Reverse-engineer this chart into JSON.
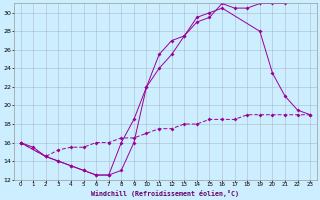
{
  "bg_color": "#cceeff",
  "line_color": "#990099",
  "grid_color": "#aabbcc",
  "xlabel": "Windchill (Refroidissement éolien,°C)",
  "xlim": [
    -0.5,
    23.5
  ],
  "ylim": [
    12,
    31
  ],
  "xticks": [
    0,
    1,
    2,
    3,
    4,
    5,
    6,
    7,
    8,
    9,
    10,
    11,
    12,
    13,
    14,
    15,
    16,
    17,
    18,
    19,
    20,
    21,
    22,
    23
  ],
  "yticks": [
    12,
    14,
    16,
    18,
    20,
    22,
    24,
    26,
    28,
    30
  ],
  "line1_x": [
    0,
    1,
    2,
    3,
    4,
    5,
    6,
    7,
    8,
    9,
    10,
    11,
    12,
    13,
    14,
    15,
    16,
    17,
    18,
    19,
    20,
    21
  ],
  "line1_y": [
    16,
    15.5,
    14.5,
    14.0,
    13.5,
    13.0,
    12.5,
    12.5,
    13.0,
    16.0,
    22.0,
    25.5,
    27.0,
    27.5,
    29.0,
    29.5,
    31.0,
    30.5,
    30.5,
    31.0,
    31.0,
    31.0
  ],
  "line2_x": [
    0,
    2,
    3,
    4,
    5,
    6,
    7,
    8,
    9,
    10,
    11,
    12,
    13,
    14,
    15,
    16,
    19,
    20,
    21,
    22,
    23
  ],
  "line2_y": [
    16,
    14.5,
    14.0,
    13.5,
    13.0,
    12.5,
    12.5,
    16.0,
    18.5,
    22.0,
    24.0,
    25.5,
    27.5,
    29.5,
    30.0,
    30.5,
    28.0,
    23.5,
    21.0,
    19.5,
    19.0
  ],
  "line3_x": [
    0,
    2,
    3,
    4,
    5,
    6,
    7,
    8,
    9,
    10,
    11,
    12,
    13,
    14,
    15,
    16,
    17,
    18,
    19,
    20,
    21,
    22,
    23
  ],
  "line3_y": [
    16,
    14.5,
    15.2,
    15.5,
    15.5,
    16.0,
    16.0,
    16.5,
    16.5,
    17.0,
    17.5,
    17.5,
    18.0,
    18.0,
    18.5,
    18.5,
    18.5,
    19.0,
    19.0,
    19.0,
    19.0,
    19.0,
    19.0
  ]
}
